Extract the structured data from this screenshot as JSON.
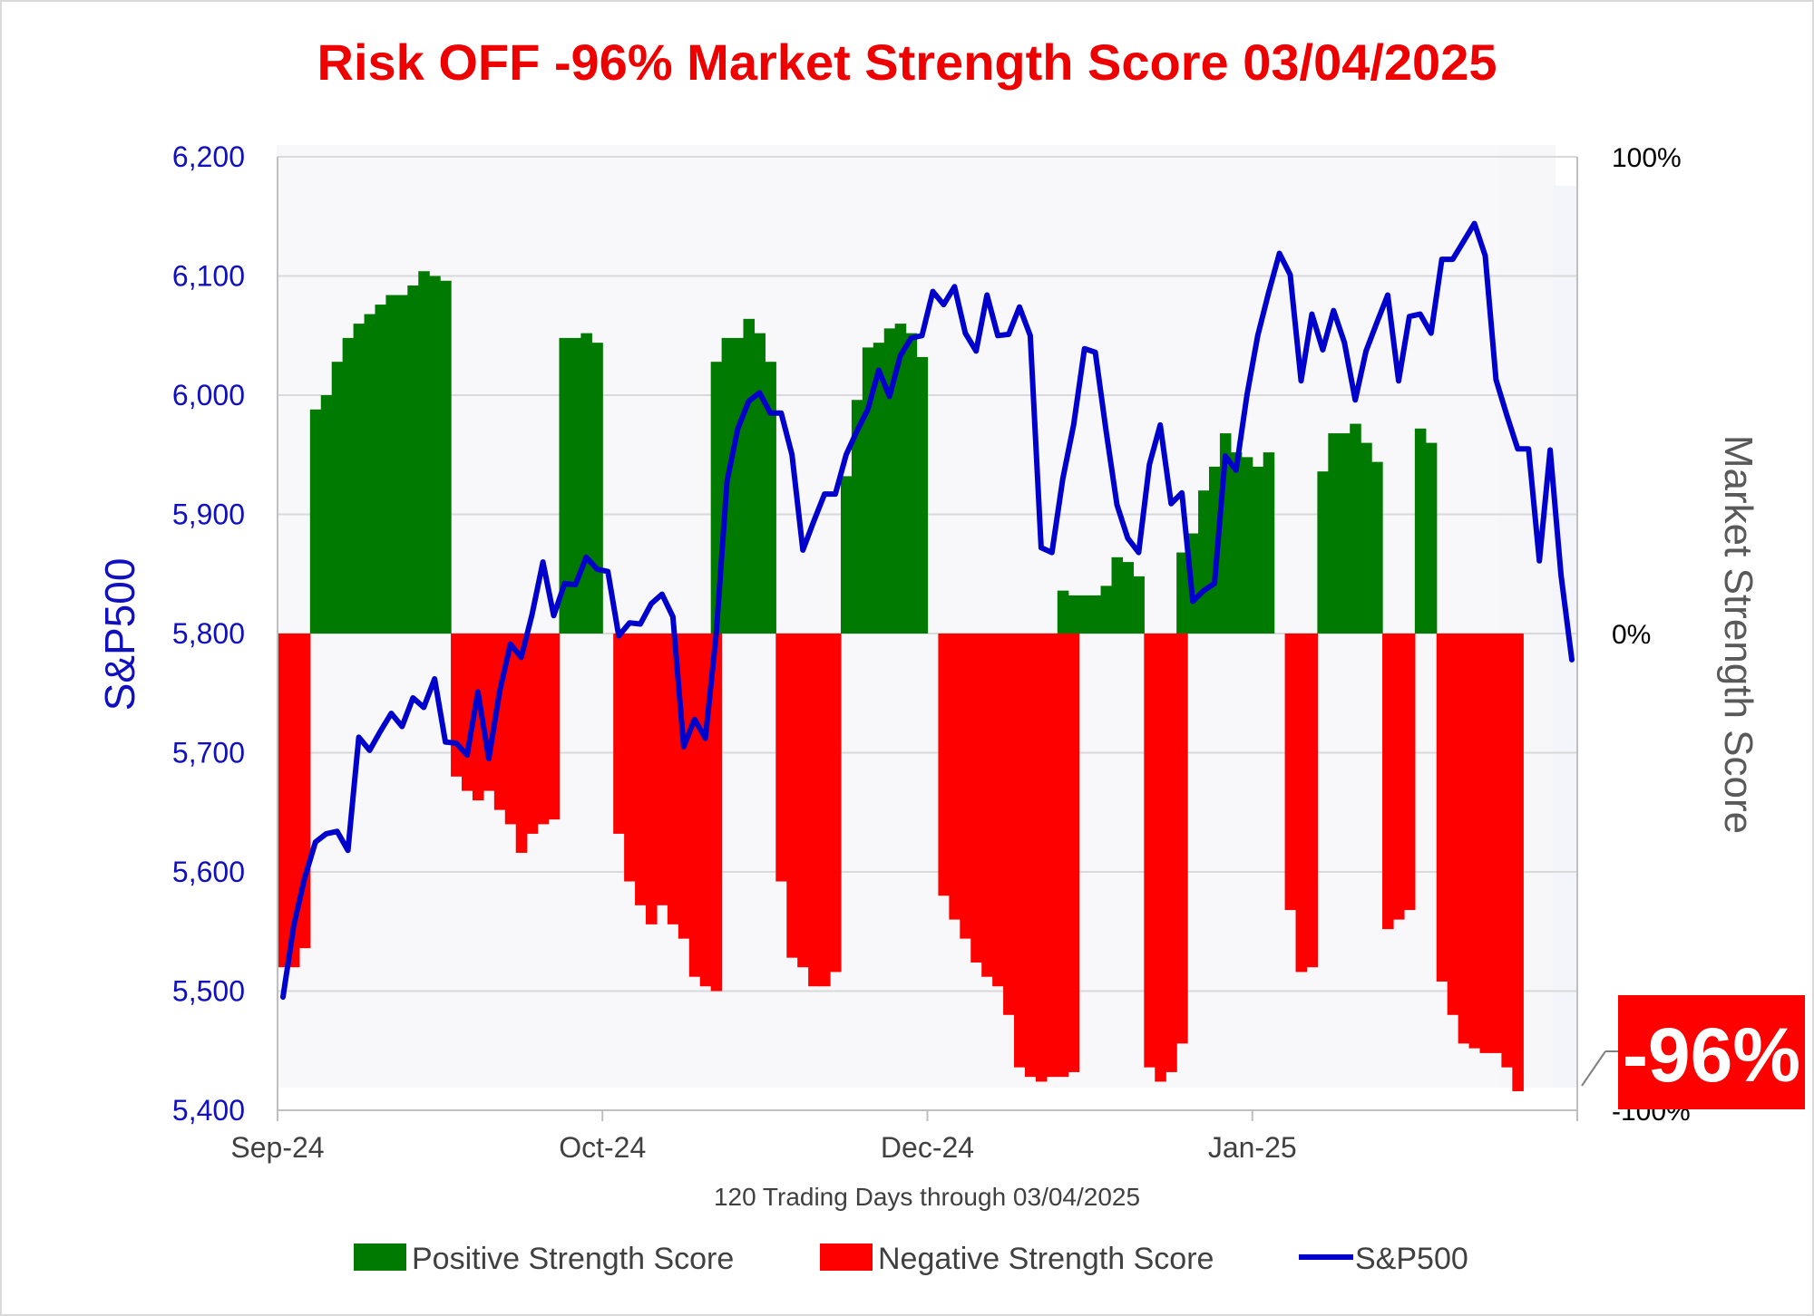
{
  "chart_data": {
    "type": "bar",
    "title": "Risk OFF -96% Market Strength Score 03/04/2025",
    "xlabel": "120 Trading Days through 03/04/2025",
    "ylabel_left": "S&P500",
    "ylabel_right": "Market Strength Score",
    "x_ticks": [
      "Sep-24",
      "Oct-24",
      "Dec-24",
      "Jan-25"
    ],
    "y_left": {
      "ticks": [
        "5,400",
        "5,500",
        "5,600",
        "5,700",
        "5,800",
        "5,900",
        "6,000",
        "6,100",
        "6,200"
      ],
      "range": [
        5400,
        6200
      ]
    },
    "y_right": {
      "ticks": [
        "-100%",
        "0%",
        "100%"
      ],
      "range": [
        -100,
        100
      ]
    },
    "grid": true,
    "legend_position": "bottom",
    "callout": "-96%",
    "colors": {
      "positive": "#007a00",
      "negative": "#ff0000",
      "sp500": "#0000cc",
      "title": "#ee0000",
      "left_axis": "#1010c0"
    },
    "series": [
      {
        "name": "Positive Strength Score",
        "type": "bar",
        "axis": "right",
        "values": [
          0,
          0,
          0,
          47,
          50,
          57,
          62,
          65,
          67,
          69,
          71,
          71,
          73,
          76,
          75,
          74,
          0,
          0,
          0,
          0,
          0,
          0,
          0,
          0,
          0,
          0,
          62,
          62,
          63,
          61,
          0,
          0,
          0,
          0,
          0,
          0,
          0,
          0,
          0,
          0,
          57,
          62,
          62,
          66,
          63,
          57,
          0,
          0,
          0,
          0,
          0,
          0,
          33,
          49,
          60,
          61,
          64,
          65,
          63,
          58,
          0,
          0,
          0,
          0,
          0,
          0,
          0,
          0,
          0,
          0,
          0,
          0,
          9,
          8,
          8,
          8,
          10,
          16,
          15,
          12,
          0,
          0,
          0,
          17,
          21,
          30,
          35,
          42,
          38,
          37,
          35,
          38,
          0,
          0,
          0,
          0,
          34,
          42,
          42,
          44,
          40,
          36,
          0,
          0,
          0,
          43,
          40,
          0,
          0,
          0,
          0,
          0,
          0,
          0,
          0,
          0
        ],
        "legend": "Positive Strength Score"
      },
      {
        "name": "Negative Strength Score",
        "type": "bar",
        "axis": "right",
        "values": [
          -70,
          -70,
          -66,
          0,
          0,
          0,
          0,
          0,
          0,
          0,
          0,
          0,
          0,
          0,
          0,
          0,
          -30,
          -33,
          -35,
          -33,
          -37,
          -40,
          -46,
          -42,
          -40,
          -39,
          0,
          0,
          0,
          0,
          0,
          -42,
          -52,
          -57,
          -61,
          -57,
          -61,
          -64,
          -72,
          -74,
          -75,
          0,
          0,
          0,
          0,
          0,
          -52,
          -68,
          -70,
          -74,
          -74,
          -71,
          0,
          0,
          0,
          0,
          0,
          0,
          0,
          0,
          0,
          -55,
          -60,
          -64,
          -69,
          -72,
          -74,
          -80,
          -91,
          -93,
          -94,
          -93,
          -93,
          -92,
          0,
          0,
          0,
          0,
          0,
          0,
          -91,
          -94,
          -92,
          -86,
          0,
          0,
          0,
          0,
          0,
          0,
          0,
          0,
          0,
          -58,
          -71,
          -70,
          0,
          0,
          0,
          0,
          0,
          0,
          -62,
          -60,
          -58,
          0,
          0,
          -73,
          -80,
          -86,
          -87,
          -88,
          -88,
          -91,
          -96
        ],
        "legend": "Negative Strength Score"
      },
      {
        "name": "S&P500",
        "type": "line",
        "axis": "left",
        "values": [
          5495,
          5555,
          5595,
          5625,
          5632,
          5634,
          5618,
          5713,
          5702,
          5718,
          5733,
          5722,
          5746,
          5738,
          5762,
          5709,
          5708,
          5698,
          5751,
          5695,
          5751,
          5791,
          5780,
          5816,
          5860,
          5815,
          5842,
          5841,
          5864,
          5854,
          5852,
          5798,
          5809,
          5808,
          5825,
          5833,
          5814,
          5705,
          5728,
          5712,
          5799,
          5928,
          5972,
          5995,
          6002,
          5985,
          5985,
          5950,
          5870,
          5894,
          5917,
          5917,
          5950,
          5970,
          5988,
          6021,
          5999,
          6033,
          6048,
          6050,
          6087,
          6076,
          6091,
          6052,
          6037,
          6084,
          6050,
          6051,
          6074,
          6050,
          5872,
          5868,
          5930,
          5975,
          6039,
          6036,
          5970,
          5908,
          5880,
          5868,
          5942,
          5975,
          5909,
          5918,
          5827,
          5836,
          5842,
          5949,
          5937,
          6000,
          6050,
          6086,
          6119,
          6101,
          6012,
          6068,
          6038,
          6071,
          6044,
          5996,
          6037,
          6061,
          6084,
          6012,
          6066,
          6068,
          6052,
          6114,
          6114,
          6129,
          6144,
          6117,
          6013,
          5983,
          5955,
          5955,
          5861,
          5954,
          5849,
          5778
        ],
        "legend": "S&P500"
      }
    ]
  }
}
